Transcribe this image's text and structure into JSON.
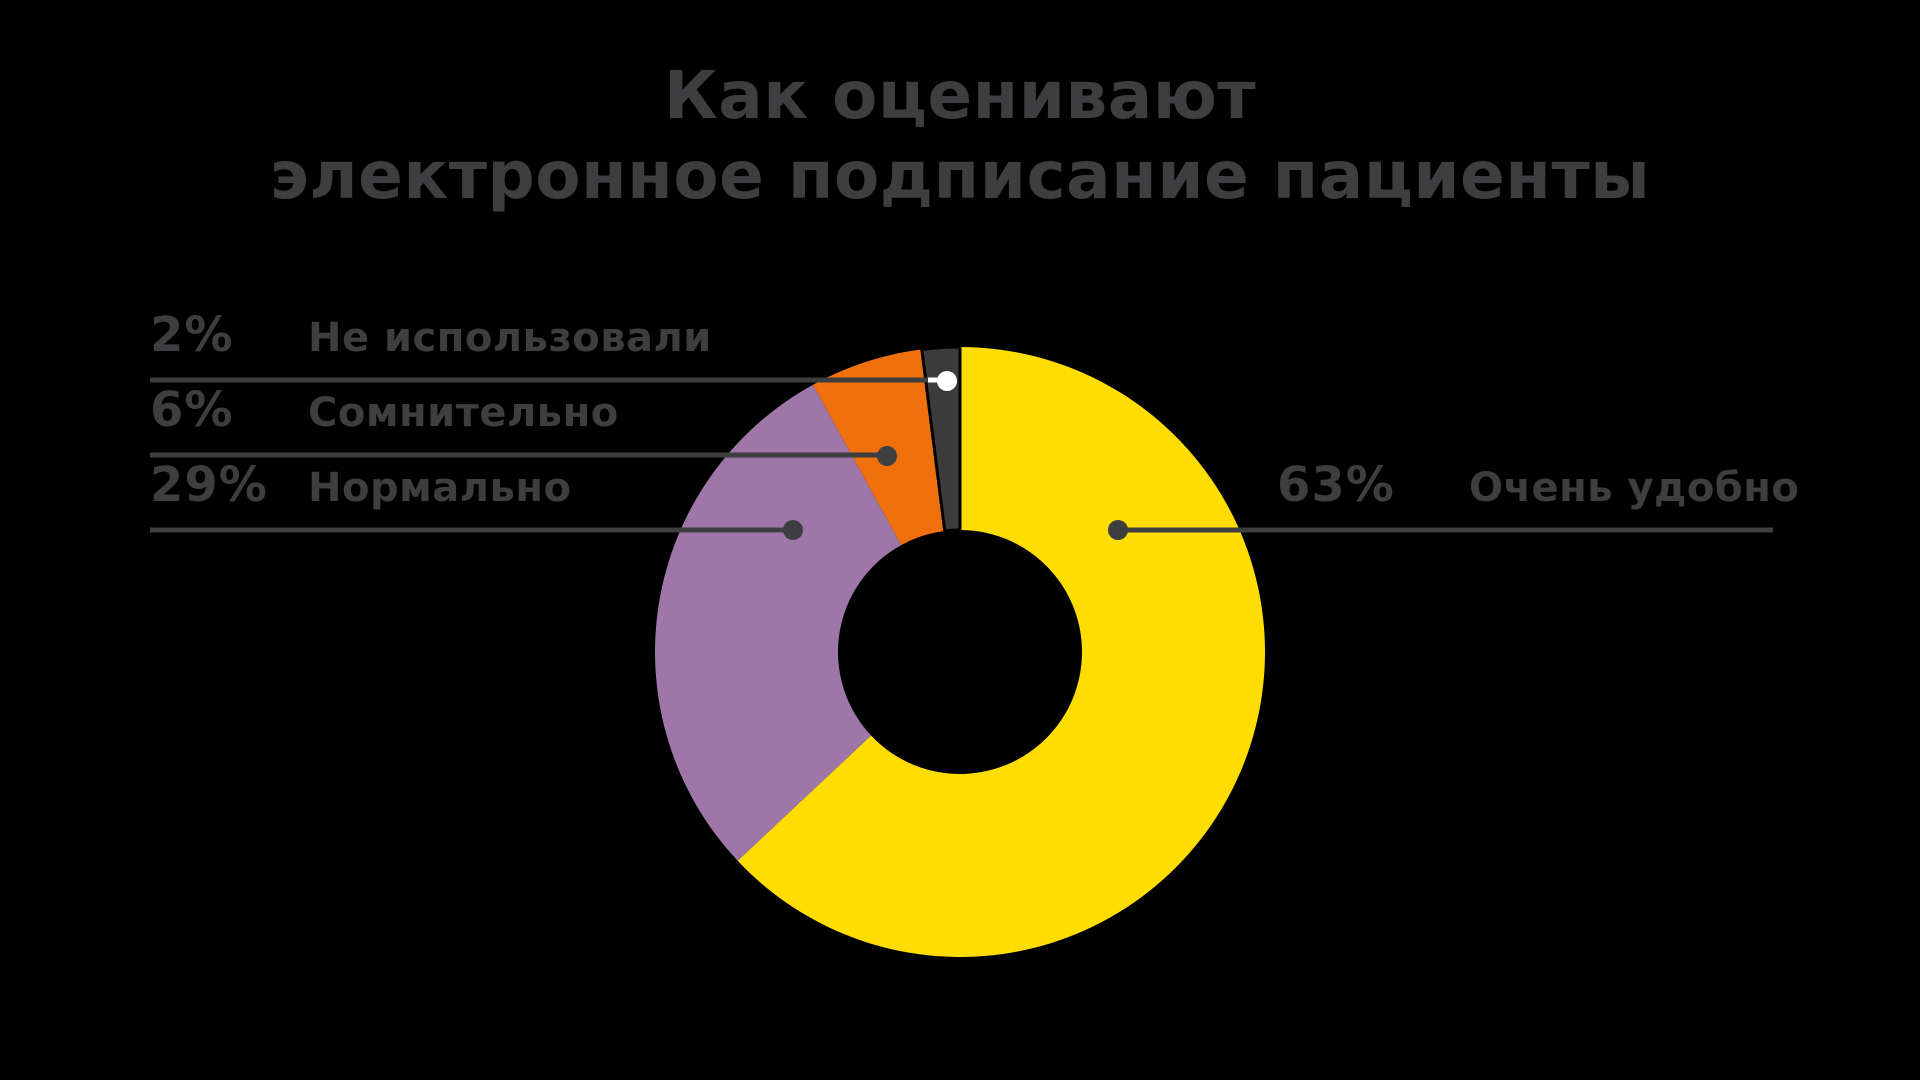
{
  "background_color": "#000000",
  "text_color": "#3E3E40",
  "title": {
    "line1": "Как оценивают",
    "line2": "электронное подписание пациенты"
  },
  "chart_data": {
    "type": "pie",
    "subtype": "donut",
    "title": "Как оценивают электронное подписание пациенты",
    "units": "%",
    "categories": [
      "Очень удобно",
      "Нормально",
      "Сомнительно",
      "Не использовали"
    ],
    "values": [
      63,
      29,
      6,
      2
    ],
    "slices": [
      {
        "label": "Очень удобно",
        "value": 63,
        "pct_label": "63%",
        "color": "#FFDD00",
        "callout_side": "right"
      },
      {
        "label": "Нормально",
        "value": 29,
        "pct_label": "29%",
        "color": "#9E77A8",
        "callout_side": "left"
      },
      {
        "label": "Сомнительно",
        "value": 6,
        "pct_label": "6%",
        "color": "#F1700E",
        "callout_side": "left"
      },
      {
        "label": "Не использовали",
        "value": 2,
        "pct_label": "2%",
        "color": "#3B3B3B",
        "callout_side": "left"
      }
    ],
    "start_angle_deg": 0,
    "clockwise": true,
    "inner_radius_ratio": 0.4,
    "legend_position": "callout labels: three rows upper-left, one row right"
  },
  "callouts": {
    "left": [
      {
        "pct": "2%",
        "label": "Не использовали"
      },
      {
        "pct": "6%",
        "label": "Сомнительно"
      },
      {
        "pct": "29%",
        "label": "Нормально"
      }
    ],
    "right": [
      {
        "pct": "63%",
        "label": "Очень удобно"
      }
    ]
  },
  "colors": {
    "leader_line": "#3E3E40",
    "dot": "#3E3E40",
    "white_dot": "#FFFFFF",
    "slice_gap": "#000000"
  }
}
